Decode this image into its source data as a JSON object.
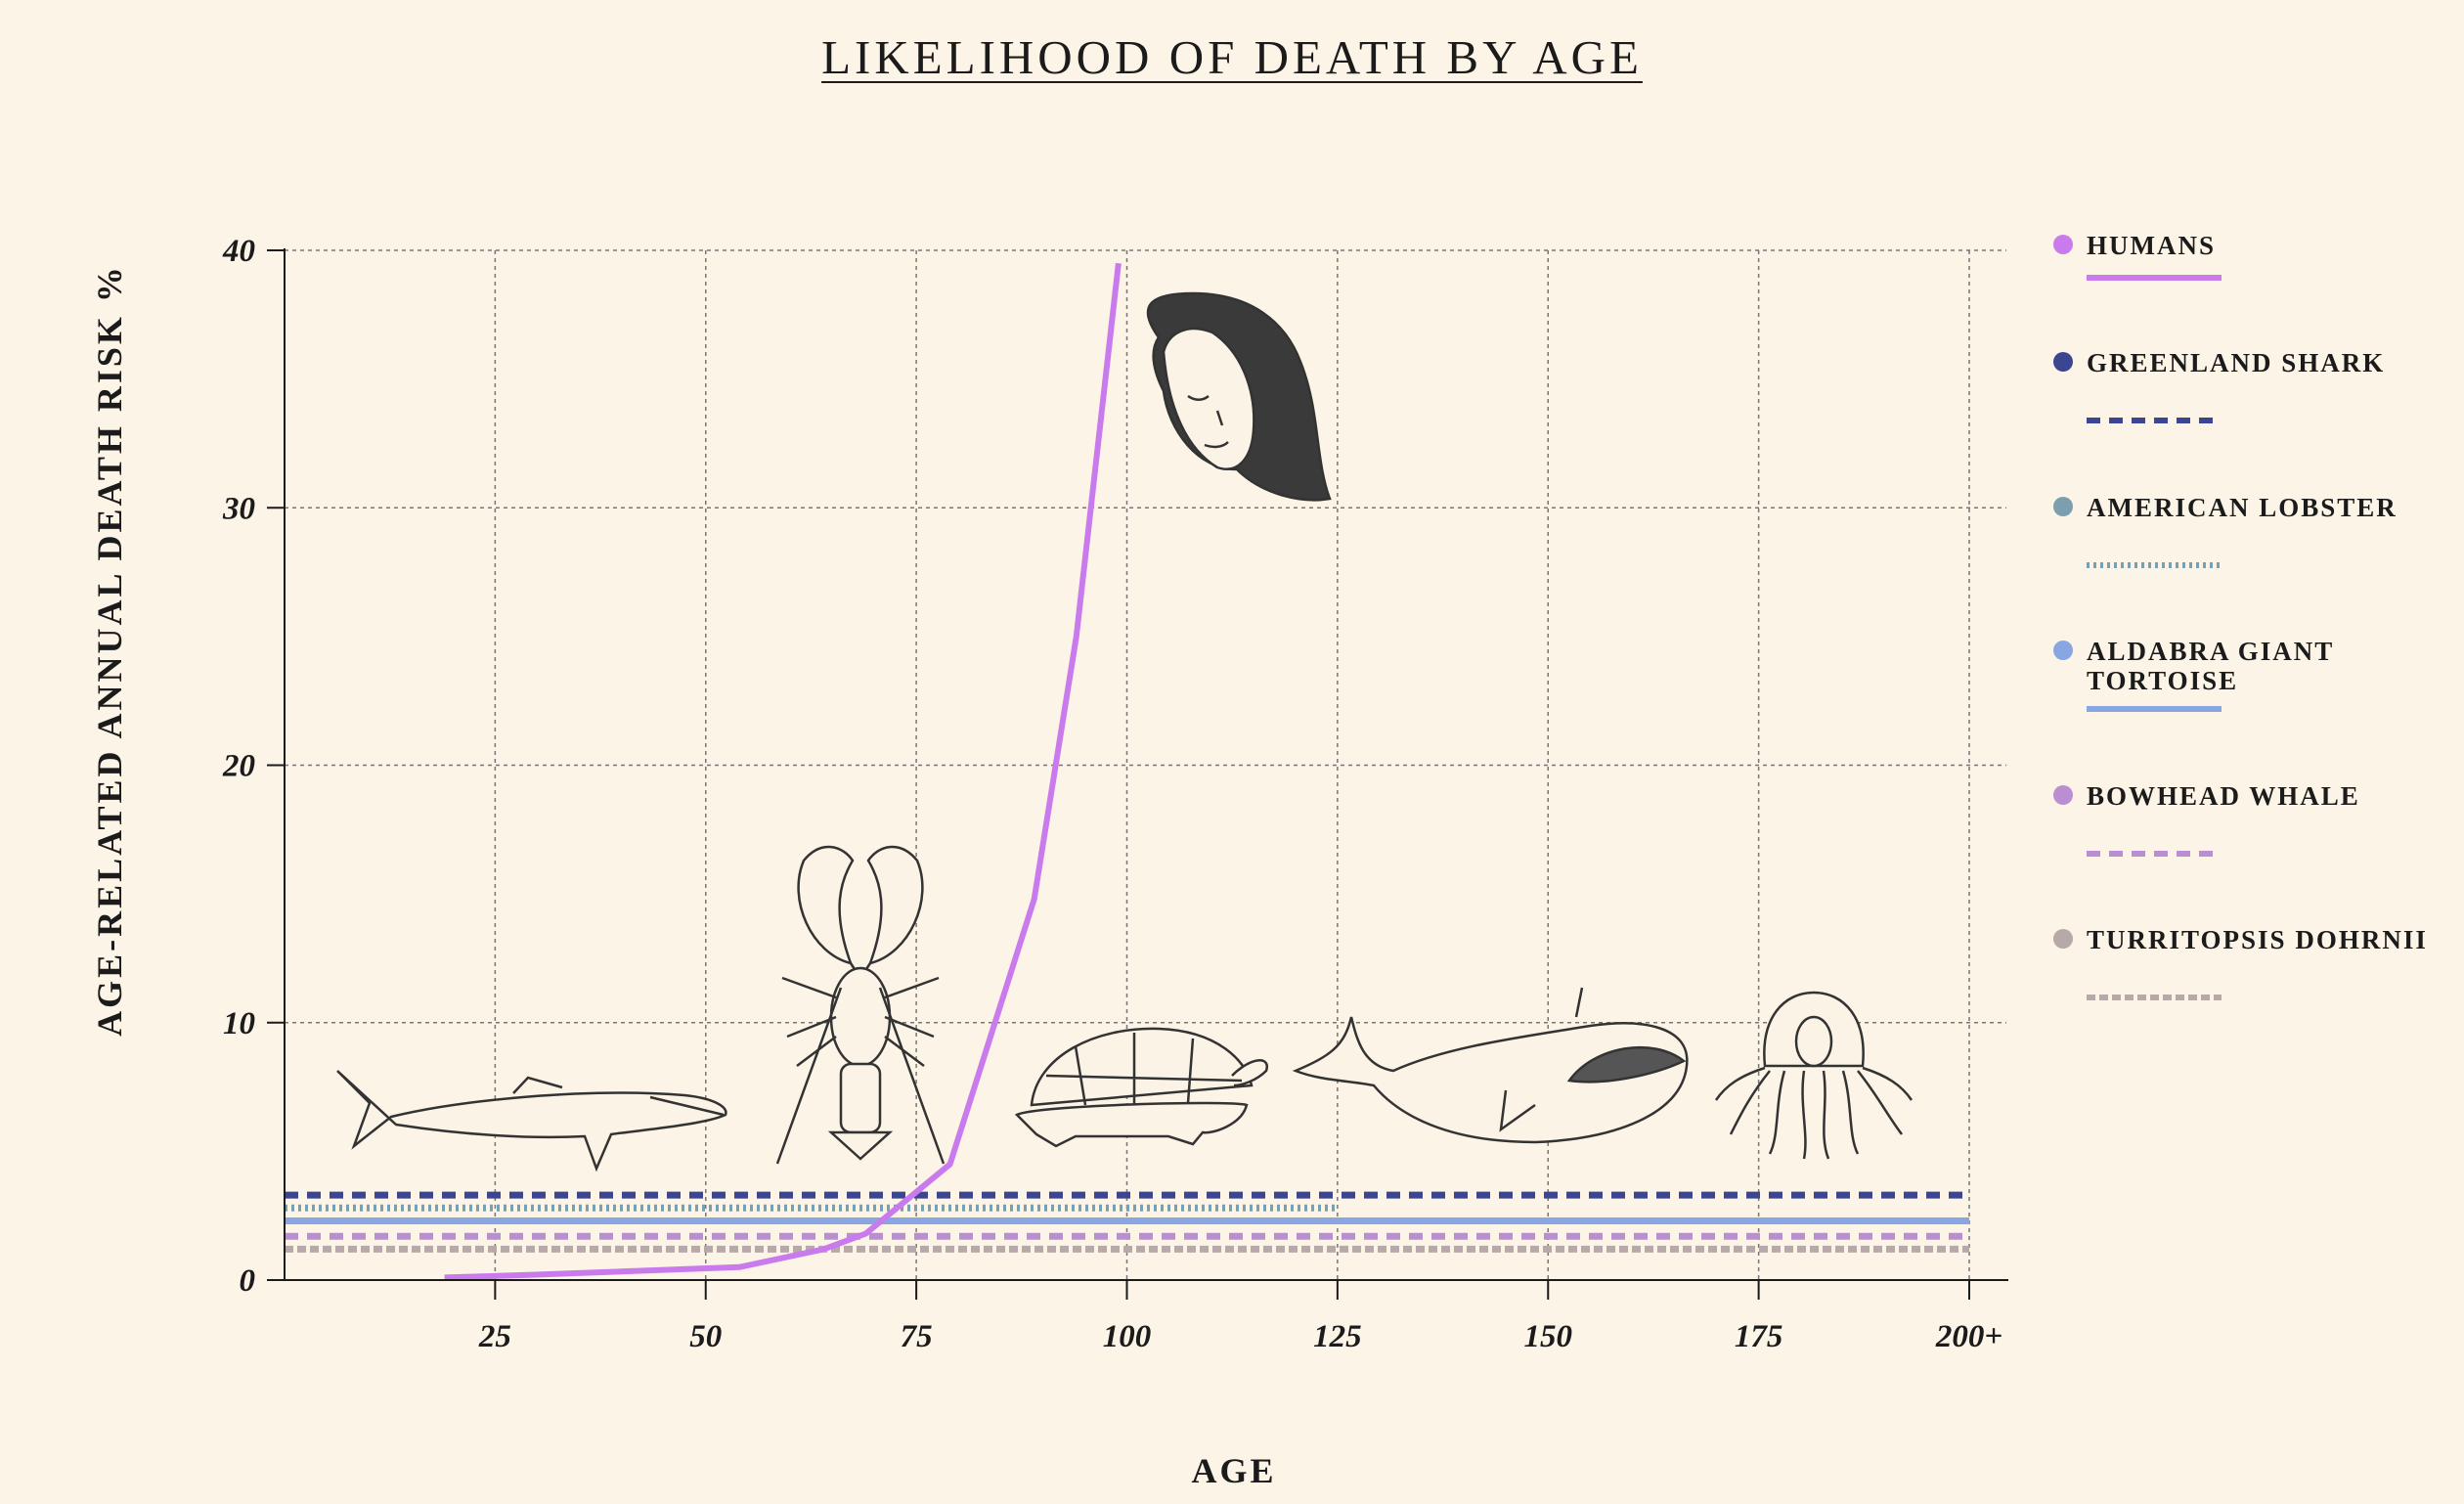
{
  "chart_data": {
    "type": "line",
    "title": "LIKELIHOOD OF DEATH BY AGE",
    "xlabel": "AGE",
    "ylabel": "AGE-RELATED ANNUAL DEATH RISK %",
    "xlim": [
      0,
      200
    ],
    "ylim": [
      0,
      40
    ],
    "x_ticks": [
      "25",
      "50",
      "75",
      "100",
      "125",
      "150",
      "175",
      "200+"
    ],
    "y_ticks": [
      "0",
      "10",
      "20",
      "30",
      "40"
    ],
    "grid": true,
    "legend_position": "right",
    "series": [
      {
        "name": "HUMANS",
        "color": "#c97bee",
        "style": "solid",
        "x": [
          19,
          29,
          54,
          64,
          69,
          79,
          89,
          94,
          99
        ],
        "y": [
          0.1,
          0.2,
          0.5,
          1.2,
          1.8,
          4.5,
          14.8,
          25,
          39.5
        ]
      },
      {
        "name": "GREENLAND SHARK",
        "color": "#3b4591",
        "style": "dashed",
        "x": [
          0,
          200
        ],
        "y": [
          3.3,
          3.3
        ]
      },
      {
        "name": "AMERICAN LOBSTER",
        "color": "#7c9fb0",
        "style": "dotted",
        "x": [
          0,
          125
        ],
        "y": [
          2.8,
          2.8
        ]
      },
      {
        "name": "ALDABRA GIANT TORTOISE",
        "color": "#87a6e2",
        "style": "solid",
        "x": [
          0,
          200
        ],
        "y": [
          2.3,
          2.3
        ]
      },
      {
        "name": "BOWHEAD WHALE",
        "color": "#b98fd2",
        "style": "dashed",
        "x": [
          0,
          200
        ],
        "y": [
          1.7,
          1.7
        ]
      },
      {
        "name": "TURRITOPSIS DOHRNII",
        "color": "#b7a9a8",
        "style": "dashdot",
        "x": [
          0,
          200
        ],
        "y": [
          1.2,
          1.2
        ]
      }
    ]
  },
  "illustrations": [
    "woman-portrait",
    "shark",
    "lobster",
    "tortoise",
    "whale",
    "jellyfish"
  ]
}
